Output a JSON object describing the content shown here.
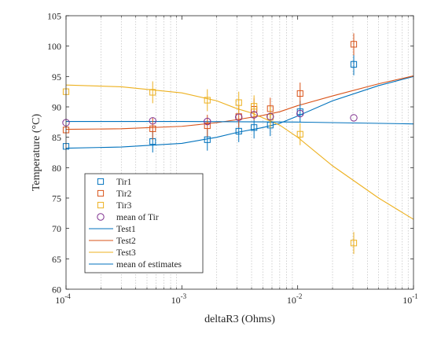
{
  "chart_data": {
    "type": "scatter",
    "xscale": "log",
    "xlim": [
      0.0001,
      0.1
    ],
    "ylim": [
      60,
      105
    ],
    "xlabel": "deltaR3 (Ohms)",
    "ylabel": "Temperature (°C)",
    "xticks": [
      {
        "value": 0.0001,
        "base": "10",
        "exp": "-4"
      },
      {
        "value": 0.001,
        "base": "10",
        "exp": "-3"
      },
      {
        "value": 0.01,
        "base": "10",
        "exp": "-2"
      },
      {
        "value": 0.1,
        "base": "10",
        "exp": "-1"
      }
    ],
    "yticks": [
      60,
      65,
      70,
      75,
      80,
      85,
      90,
      95,
      100,
      105
    ],
    "grid": "x-minor",
    "legend_position": "lower-left",
    "marker_series": [
      {
        "name": "Tir1",
        "marker": "square",
        "color": "#0072BD",
        "points": [
          {
            "x": 0.0001,
            "y": 83.5
          },
          {
            "x": 0.00056,
            "y": 84.3,
            "err": 1.8
          },
          {
            "x": 0.00166,
            "y": 84.6,
            "err": 1.8
          },
          {
            "x": 0.0031,
            "y": 86.0,
            "err": 1.8
          },
          {
            "x": 0.0042,
            "y": 86.6,
            "err": 1.8
          },
          {
            "x": 0.0058,
            "y": 87.0,
            "err": 1.8
          },
          {
            "x": 0.0105,
            "y": 89.2,
            "err": 1.8
          },
          {
            "x": 0.0305,
            "y": 97.0,
            "err": 1.8
          }
        ]
      },
      {
        "name": "Tir2",
        "marker": "square",
        "color": "#D95319",
        "points": [
          {
            "x": 0.0001,
            "y": 86.2
          },
          {
            "x": 0.00056,
            "y": 86.4,
            "err": 1.8
          },
          {
            "x": 0.00166,
            "y": 86.9,
            "err": 1.8
          },
          {
            "x": 0.0031,
            "y": 88.4,
            "err": 1.8
          },
          {
            "x": 0.0042,
            "y": 89.6,
            "err": 1.8
          },
          {
            "x": 0.0058,
            "y": 89.7,
            "err": 1.8
          },
          {
            "x": 0.0105,
            "y": 92.2,
            "err": 1.8
          },
          {
            "x": 0.0305,
            "y": 100.3,
            "err": 1.8
          }
        ]
      },
      {
        "name": "Tir3",
        "marker": "square",
        "color": "#EDB120",
        "points": [
          {
            "x": 0.0001,
            "y": 92.5
          },
          {
            "x": 0.00056,
            "y": 92.4,
            "err": 1.8
          },
          {
            "x": 0.00166,
            "y": 91.1,
            "err": 1.8
          },
          {
            "x": 0.0031,
            "y": 90.7,
            "err": 1.8
          },
          {
            "x": 0.0042,
            "y": 90.1,
            "err": 1.8
          },
          {
            "x": 0.0058,
            "y": 88.3,
            "err": 1.8
          },
          {
            "x": 0.0105,
            "y": 85.5,
            "err": 1.8
          },
          {
            "x": 0.0305,
            "y": 67.6,
            "err": 1.8
          }
        ]
      },
      {
        "name": "mean of Tir",
        "marker": "circle",
        "color": "#7E2F8E",
        "points": [
          {
            "x": 0.0001,
            "y": 87.4
          },
          {
            "x": 0.00056,
            "y": 87.7
          },
          {
            "x": 0.00166,
            "y": 87.6
          },
          {
            "x": 0.0031,
            "y": 88.3
          },
          {
            "x": 0.0042,
            "y": 88.7
          },
          {
            "x": 0.0058,
            "y": 88.4
          },
          {
            "x": 0.0105,
            "y": 88.9
          },
          {
            "x": 0.0305,
            "y": 88.2
          }
        ]
      }
    ],
    "line_series": [
      {
        "name": "Test1",
        "color": "#0072BD",
        "x": [
          0.0001,
          0.0003,
          0.001,
          0.002,
          0.003,
          0.005,
          0.007,
          0.01,
          0.02,
          0.05,
          0.1
        ],
        "y": [
          83.2,
          83.4,
          84.0,
          85.0,
          85.8,
          86.6,
          87.3,
          88.5,
          91.0,
          93.5,
          95.0
        ]
      },
      {
        "name": "Test2",
        "color": "#D95319",
        "x": [
          0.0001,
          0.0003,
          0.001,
          0.002,
          0.003,
          0.005,
          0.007,
          0.01,
          0.02,
          0.05,
          0.1
        ],
        "y": [
          86.3,
          86.4,
          86.8,
          87.4,
          87.9,
          88.6,
          89.2,
          90.2,
          91.8,
          93.8,
          95.1
        ]
      },
      {
        "name": "Test3",
        "color": "#EDB120",
        "x": [
          0.0001,
          0.0003,
          0.001,
          0.002,
          0.003,
          0.004,
          0.005,
          0.007,
          0.01,
          0.02,
          0.05,
          0.1
        ],
        "y": [
          93.6,
          93.3,
          92.3,
          91.0,
          89.7,
          89.0,
          88.2,
          87.0,
          85.0,
          80.3,
          75.0,
          71.5
        ]
      },
      {
        "name": "mean of estimates",
        "color": "#0072BD",
        "x": [
          0.0001,
          0.001,
          0.01,
          0.1
        ],
        "y": [
          87.6,
          87.6,
          87.5,
          87.2
        ]
      }
    ]
  }
}
